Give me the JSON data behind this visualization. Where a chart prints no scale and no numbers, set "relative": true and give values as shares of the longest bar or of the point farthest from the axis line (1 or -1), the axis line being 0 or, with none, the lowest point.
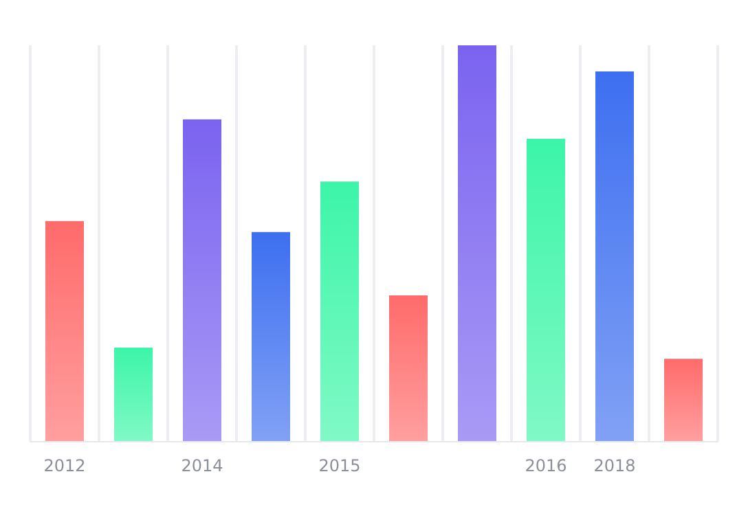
{
  "chart_data": {
    "type": "bar",
    "relative": true,
    "categories": [
      "2012",
      null,
      "2014",
      null,
      "2015",
      null,
      null,
      "2016",
      "2018",
      null
    ],
    "values": [
      0.556,
      0.236,
      0.813,
      0.528,
      0.656,
      0.368,
      1,
      0.764,
      0.934,
      0.208
    ],
    "colors": [
      "#ff6b6b",
      "#3cf5a8",
      "#7b63f0",
      "#3d6ff0",
      "#3cf5a8",
      "#ff6b6b",
      "#7b63f0",
      "#3cf5a8",
      "#3d6ff0",
      "#ff6b6b"
    ],
    "grid": "x"
  }
}
